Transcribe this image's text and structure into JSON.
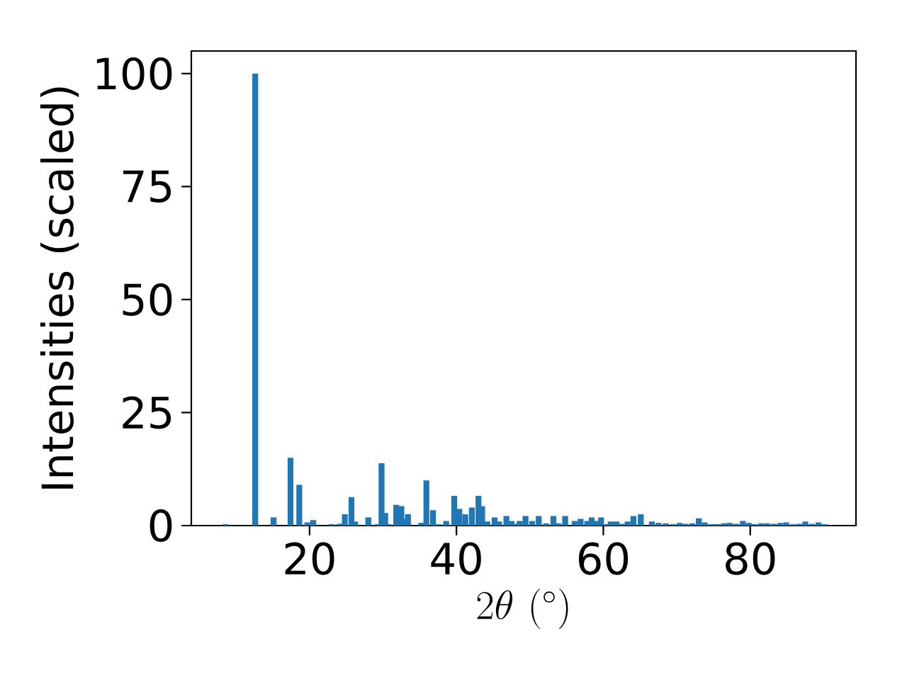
{
  "chart_data": {
    "type": "bar",
    "xlabel": "2\\theta\\ (^\\circ)",
    "ylabel": "Intensities (scaled)",
    "color": "#1f77b4",
    "x": [
      8.55,
      12.6,
      15.1,
      17.4,
      18.6,
      19.7,
      20.5,
      23.0,
      24.1,
      24.8,
      25.7,
      26.2,
      28.0,
      29.3,
      29.8,
      30.3,
      30.7,
      31.8,
      32.5,
      32.9,
      33.4,
      35.2,
      35.9,
      36.8,
      37.6,
      38.6,
      39.7,
      40.4,
      41.2,
      42.1,
      43.0,
      43.5,
      44.2,
      45.2,
      45.8,
      46.8,
      47.5,
      48.2,
      48.6,
      49.4,
      50.3,
      51.2,
      52.2,
      53.2,
      53.9,
      54.8,
      56.1,
      56.9,
      57.8,
      58.4,
      59.2,
      59.7,
      60.4,
      61.0,
      61.8,
      62.5,
      63.3,
      64.1,
      65.1,
      66.6,
      67.5,
      68.5,
      69.5,
      70.4,
      71.2,
      72.1,
      73.0,
      73.8,
      74.7,
      75.5,
      76.4,
      77.2,
      78.1,
      79.0,
      79.8,
      80.6,
      81.5,
      82.3,
      83.2,
      84.1,
      84.9,
      85.8,
      86.7,
      87.5,
      88.4,
      89.3,
      90.1
    ],
    "values": [
      0.3,
      100,
      1.8,
      15.0,
      9.0,
      0.7,
      1.2,
      0.3,
      0.4,
      2.5,
      6.3,
      0.9,
      1.8,
      0.3,
      13.8,
      2.8,
      0.3,
      4.6,
      4.3,
      1.5,
      2.5,
      0.6,
      10.0,
      3.4,
      0.3,
      1.0,
      6.6,
      3.7,
      2.5,
      4.0,
      6.6,
      4.3,
      0.9,
      1.8,
      0.9,
      2.1,
      1.0,
      0.4,
      1.0,
      2.1,
      1.0,
      2.1,
      0.5,
      2.1,
      0.5,
      2.1,
      1.0,
      1.5,
      1.0,
      1.8,
      1.0,
      1.8,
      0.3,
      0.9,
      0.9,
      0.4,
      0.9,
      2.1,
      2.5,
      0.9,
      0.6,
      0.5,
      0.3,
      0.6,
      0.4,
      0.5,
      1.6,
      0.7,
      0.3,
      0.3,
      0.5,
      0.6,
      0.4,
      1.0,
      0.6,
      0.3,
      0.5,
      0.5,
      0.4,
      0.6,
      0.7,
      0.3,
      0.4,
      0.9,
      0.4,
      0.7,
      0.3
    ],
    "xlim": [
      3.9,
      94.4
    ],
    "ylim": [
      0,
      105
    ],
    "xticks": [
      20,
      40,
      60,
      80
    ],
    "yticks": [
      0,
      25,
      50,
      75,
      100
    ]
  }
}
